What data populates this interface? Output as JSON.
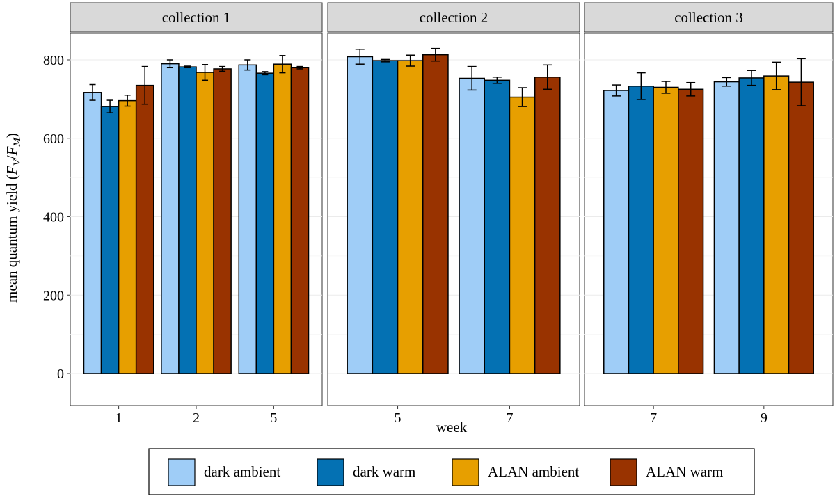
{
  "chart_data": {
    "type": "bar",
    "xlabel": "week",
    "ylabel": {
      "prefix": "mean quantum yield (",
      "f1": "F",
      "sub1": "V",
      "sep": "/",
      "f2": "F",
      "sub2": "M",
      "suffix": ")"
    },
    "ylim": [
      0,
      900
    ],
    "yticks": [
      "0",
      "200",
      "400",
      "600",
      "800"
    ],
    "ytick_values": [
      0,
      200,
      400,
      600,
      800
    ],
    "grid": true,
    "legend_position": "bottom",
    "series": [
      {
        "name": "dark ambient",
        "color": "#9fcdf7"
      },
      {
        "name": "dark warm",
        "color": "#0471b3"
      },
      {
        "name": "ALAN ambient",
        "color": "#e79f00"
      },
      {
        "name": "ALAN warm",
        "color": "#993300"
      }
    ],
    "panels": [
      {
        "title": "collection 1",
        "weeks": [
          {
            "label": "1",
            "values": [
              717,
              681,
              696,
              735
            ],
            "errors": [
              20,
              16,
              14,
              48
            ]
          },
          {
            "label": "2",
            "values": [
              790,
              782,
              768,
              777
            ],
            "errors": [
              10,
              2,
              20,
              6
            ]
          },
          {
            "label": "5",
            "values": [
              787,
              766,
              789,
              780
            ],
            "errors": [
              13,
              4,
              22,
              3
            ]
          }
        ]
      },
      {
        "title": "collection 2",
        "weeks": [
          {
            "label": "5",
            "values": [
              808,
              798,
              798,
              813
            ],
            "errors": [
              19,
              3,
              14,
              16
            ]
          },
          {
            "label": "7",
            "values": [
              753,
              748,
              705,
              756
            ],
            "errors": [
              30,
              8,
              24,
              31
            ]
          }
        ]
      },
      {
        "title": "collection 3",
        "weeks": [
          {
            "label": "7",
            "values": [
              722,
              733,
              730,
              725
            ],
            "errors": [
              14,
              34,
              15,
              17
            ]
          },
          {
            "label": "9",
            "values": [
              744,
              754,
              759,
              743
            ],
            "errors": [
              11,
              19,
              35,
              60
            ]
          }
        ]
      }
    ]
  }
}
